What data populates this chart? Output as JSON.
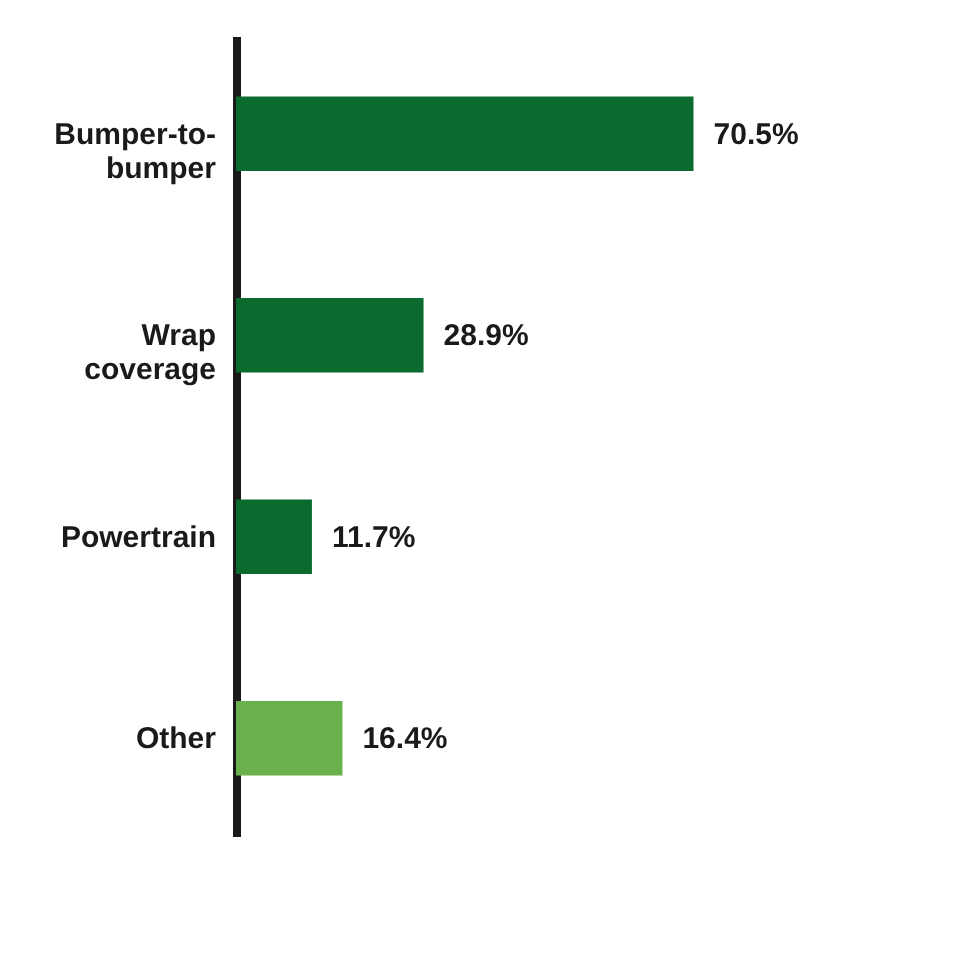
{
  "chart_data": {
    "type": "bar",
    "orientation": "horizontal",
    "categories": [
      "Bumper-to-bumper",
      "Wrap coverage",
      "Powertrain",
      "Other"
    ],
    "values": [
      70.5,
      28.9,
      11.7,
      16.4
    ],
    "value_labels": [
      "70.5%",
      "28.9%",
      "11.7%",
      "16.4%"
    ],
    "colors": [
      "#0b6b2f",
      "#0b6b2f",
      "#0b6b2f",
      "#6ab04c"
    ],
    "grid": false
  }
}
